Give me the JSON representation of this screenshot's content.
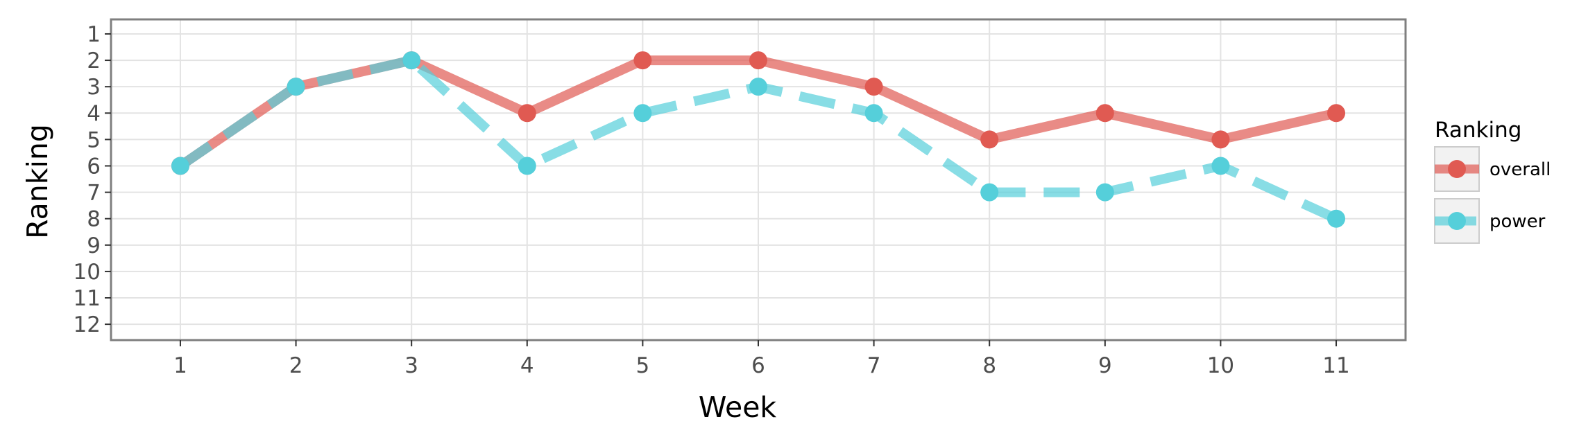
{
  "chart_data": {
    "type": "line",
    "xlabel": "Week",
    "ylabel": "Ranking",
    "x": [
      1,
      2,
      3,
      4,
      5,
      6,
      7,
      8,
      9,
      10,
      11
    ],
    "x_tick_labels": [
      "1",
      "2",
      "3",
      "4",
      "5",
      "6",
      "7",
      "8",
      "9",
      "10",
      "11"
    ],
    "y_ticks": [
      1,
      2,
      3,
      4,
      5,
      6,
      7,
      8,
      9,
      10,
      11,
      12
    ],
    "y_tick_labels": [
      "1",
      "2",
      "3",
      "4",
      "5",
      "6",
      "7",
      "8",
      "9",
      "10",
      "11",
      "12"
    ],
    "xlim": [
      0.4,
      11.6
    ],
    "ylim": [
      12.6,
      0.45
    ],
    "y_reversed": true,
    "grid": true,
    "legend": {
      "title": "Ranking",
      "position": "right"
    },
    "series": [
      {
        "name": "overall",
        "color": "#E05A52",
        "line_style": "solid",
        "values": [
          6,
          3,
          2,
          4,
          2,
          2,
          3,
          5,
          4,
          5,
          4
        ]
      },
      {
        "name": "power",
        "color": "#55CFDA",
        "line_style": "dashed",
        "values": [
          6,
          3,
          2,
          6,
          4,
          3,
          4,
          7,
          7,
          6,
          8
        ]
      }
    ]
  }
}
